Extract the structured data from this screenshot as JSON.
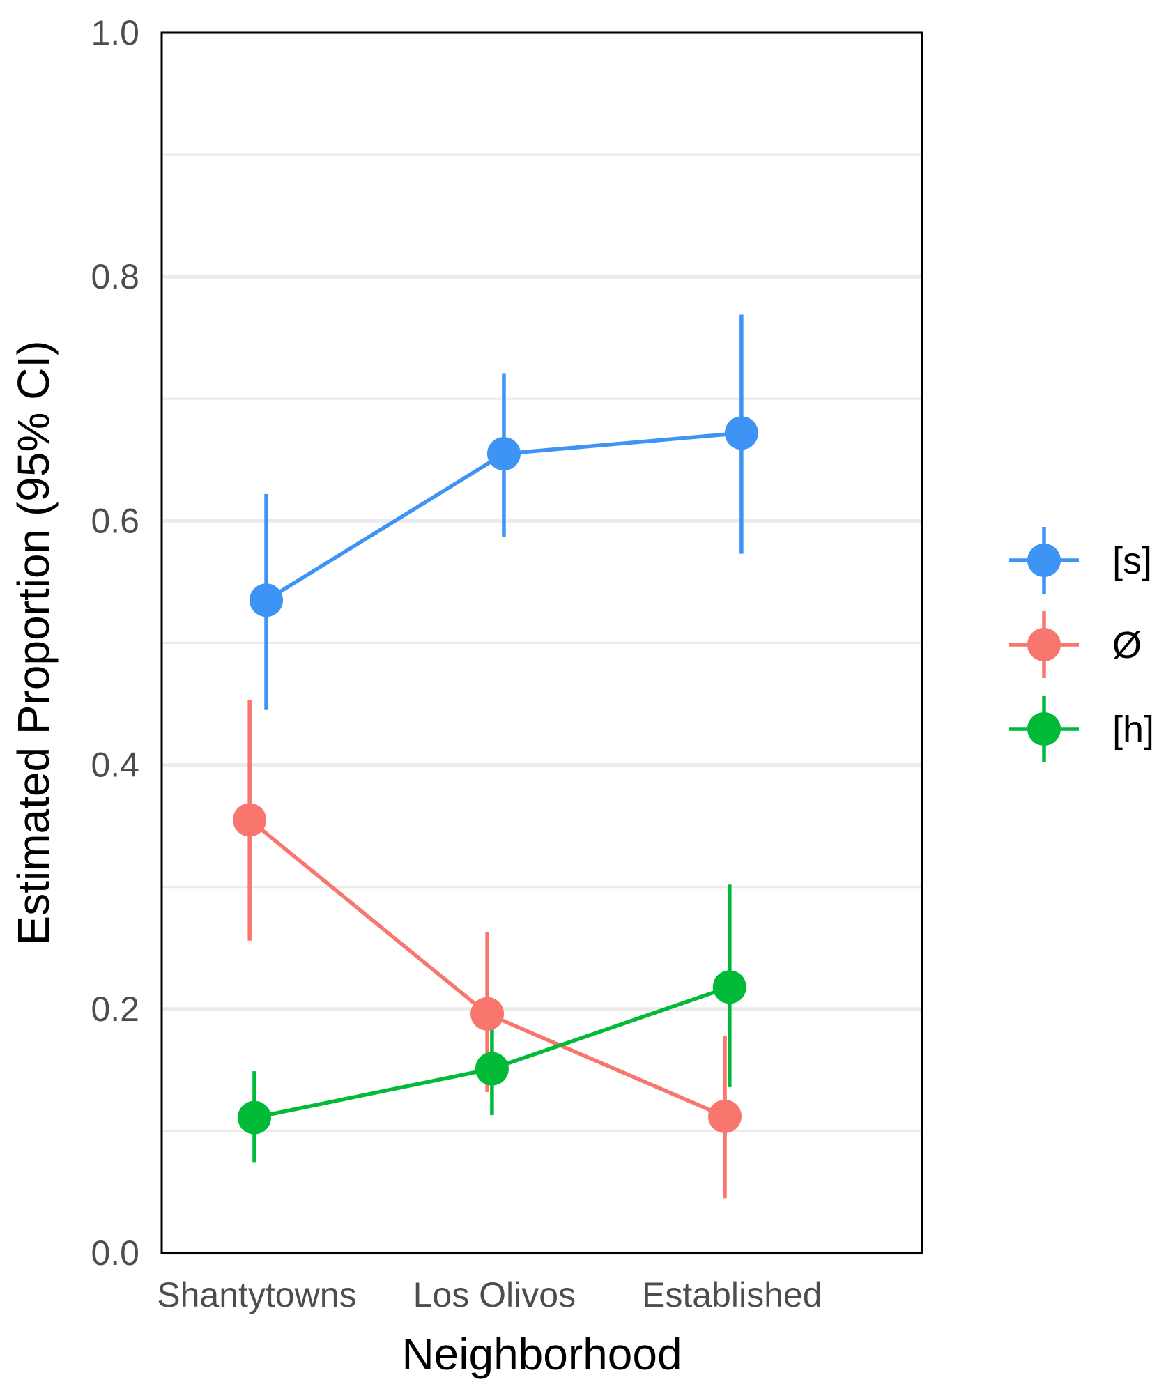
{
  "chart_data": {
    "type": "line",
    "title": "",
    "xlabel": "Neighborhood",
    "ylabel": "Estimated Proportion (95% CI)",
    "categories": [
      "Shantytowns",
      "Los Olivos",
      "Established"
    ],
    "ylim": [
      0,
      1
    ],
    "yticks": [
      0,
      0.2,
      0.4,
      0.6,
      0.8,
      1
    ],
    "yticks_labels": [
      "0.0",
      "0.2",
      "0.4",
      "0.6",
      "0.8",
      "1.0"
    ],
    "minor_gridlines": [
      0.1,
      0.3,
      0.5,
      0.7,
      0.9
    ],
    "grid": true,
    "legend_position": "right",
    "series": [
      {
        "name": "[s]",
        "color": "#3d94f5",
        "dodge": 0.04,
        "values": [
          0.535,
          0.655,
          0.672
        ],
        "lower": [
          0.445,
          0.587,
          0.573
        ],
        "upper": [
          0.622,
          0.721,
          0.769
        ]
      },
      {
        "name": "Ø",
        "color": "#f8766d",
        "dodge": -0.03,
        "values": [
          0.355,
          0.196,
          0.112
        ],
        "lower": [
          0.256,
          0.132,
          0.045
        ],
        "upper": [
          0.453,
          0.263,
          0.178
        ]
      },
      {
        "name": "[h]",
        "color": "#00ba38",
        "dodge": -0.01,
        "values": [
          0.111,
          0.151,
          0.218
        ],
        "lower": [
          0.074,
          0.113,
          0.136
        ],
        "upper": [
          0.149,
          0.191,
          0.302
        ]
      }
    ]
  }
}
